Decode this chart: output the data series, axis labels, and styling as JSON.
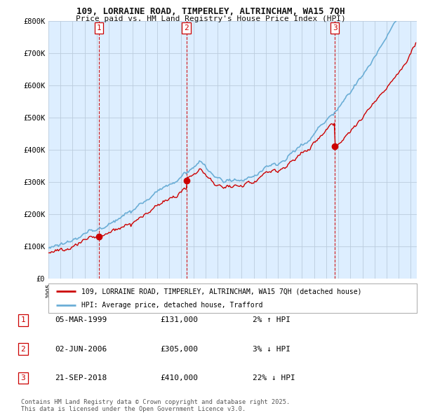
{
  "title_line1": "109, LORRAINE ROAD, TIMPERLEY, ALTRINCHAM, WA15 7QH",
  "title_line2": "Price paid vs. HM Land Registry's House Price Index (HPI)",
  "legend_label1": "109, LORRAINE ROAD, TIMPERLEY, ALTRINCHAM, WA15 7QH (detached house)",
  "legend_label2": "HPI: Average price, detached house, Trafford",
  "transactions": [
    {
      "num": 1,
      "date": "05-MAR-1999",
      "price_str": "£131,000",
      "year": 1999.17,
      "price": 131000,
      "hpi_rel": "2% ↑ HPI"
    },
    {
      "num": 2,
      "date": "02-JUN-2006",
      "price_str": "£305,000",
      "year": 2006.42,
      "price": 305000,
      "hpi_rel": "3% ↓ HPI"
    },
    {
      "num": 3,
      "date": "21-SEP-2018",
      "price_str": "£410,000",
      "year": 2018.72,
      "price": 410000,
      "hpi_rel": "22% ↓ HPI"
    }
  ],
  "footer_line1": "Contains HM Land Registry data © Crown copyright and database right 2025.",
  "footer_line2": "This data is licensed under the Open Government Licence v3.0.",
  "bg_color": "#ffffff",
  "plot_bg_color": "#ddeeff",
  "grid_color": "#bbccdd",
  "hpi_line_color": "#6baed6",
  "price_line_color": "#cc0000",
  "vline_color": "#cc0000",
  "ylim_max": 800000,
  "xmin": 1995.0,
  "xmax": 2025.5
}
